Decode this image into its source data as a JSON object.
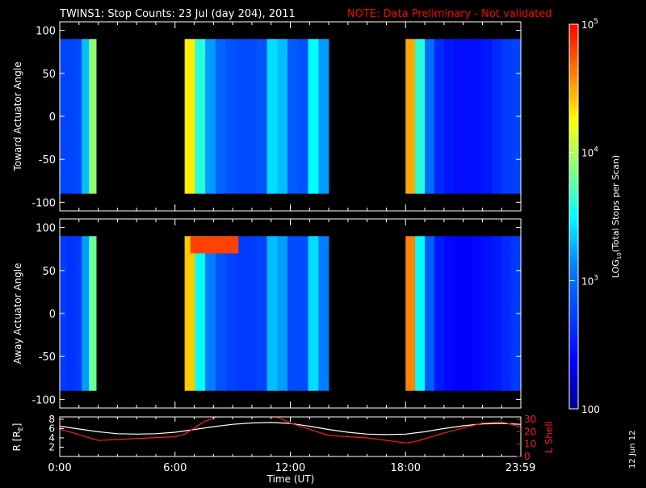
{
  "title": {
    "main": "TWINS1: Stop Counts: 23 Jul (day 204), 2011",
    "note": "NOTE: Data Preliminary - Not validated",
    "note_color": "#ff0000"
  },
  "side_date": "12 Jun 12",
  "colors": {
    "background": "#000000",
    "axes": "#ffffff",
    "orbit_L": "#ff1a1a",
    "orbit_R": "#ffffff"
  },
  "chart_data": [
    {
      "type": "heatmap",
      "panel": "top",
      "ylabel": "Toward Actuator Angle",
      "ylim": [
        -110,
        110
      ],
      "angle_range": [
        -90,
        90
      ],
      "yticks": [
        "100",
        "50",
        "0",
        "-50",
        "-100"
      ],
      "ytick_values": [
        100,
        50,
        0,
        -50,
        -100
      ],
      "xlim_hours": [
        0,
        24
      ],
      "colorscale": "log10",
      "data_gaps_hours": [
        [
          1.9,
          6.5
        ],
        [
          14.0,
          18.0
        ]
      ],
      "time_segments": [
        {
          "start": 0.0,
          "end": 1.9,
          "log_counts": [
            2.75,
            2.75,
            2.8,
            3.3,
            3.9
          ]
        },
        {
          "start": 6.5,
          "end": 14.0,
          "log_counts": [
            4.3,
            3.6,
            3.2,
            2.95,
            2.85,
            2.8,
            2.8,
            2.85,
            3.4,
            3.3,
            2.9,
            2.85,
            3.5,
            3.2
          ]
        },
        {
          "start": 18.0,
          "end": 24.0,
          "log_counts": [
            4.5,
            3.6,
            3.0,
            2.6,
            2.5,
            2.45,
            2.45,
            2.45,
            2.5,
            2.6,
            2.7,
            2.75
          ]
        }
      ]
    },
    {
      "type": "heatmap",
      "panel": "middle",
      "ylabel": "Away Actuator Angle",
      "ylim": [
        -110,
        110
      ],
      "angle_range": [
        -90,
        90
      ],
      "yticks": [
        "100",
        "50",
        "0",
        "-50",
        "-100"
      ],
      "ytick_values": [
        100,
        50,
        0,
        -50,
        -100
      ],
      "xlim_hours": [
        0,
        24
      ],
      "colorscale": "log10",
      "data_gaps_hours": [
        [
          1.9,
          6.5
        ],
        [
          14.0,
          18.0
        ]
      ],
      "time_segments": [
        {
          "start": 0.0,
          "end": 1.9,
          "log_counts": [
            2.7,
            2.65,
            2.7,
            3.2,
            3.8
          ]
        },
        {
          "start": 6.5,
          "end": 14.0,
          "log_counts": [
            4.4,
            3.5,
            3.1,
            2.85,
            2.75,
            2.7,
            2.7,
            2.75,
            3.3,
            3.2,
            2.8,
            2.8,
            3.4,
            3.1
          ]
        },
        {
          "start": 18.0,
          "end": 24.0,
          "log_counts": [
            4.6,
            3.5,
            2.9,
            2.5,
            2.4,
            2.35,
            2.35,
            2.4,
            2.45,
            2.5,
            2.6,
            2.7
          ]
        }
      ],
      "saturation_band": {
        "start": 6.8,
        "end": 9.3,
        "angle_min": 70,
        "angle_max": 90,
        "log_counts": 4.8
      }
    },
    {
      "type": "line",
      "panel": "orbit",
      "ylabel_left": "R [R",
      "ylabel_left_sub": "E",
      "ylabel_left_close": "]",
      "ylabel_right": "L Shell",
      "yticks_left": [
        "8",
        "6",
        "4",
        "2"
      ],
      "ytick_left_values": [
        8,
        6,
        4,
        2
      ],
      "ylim_left": [
        0,
        8.5
      ],
      "yticks_right": [
        "30",
        "20",
        "10",
        "0"
      ],
      "ytick_right_values": [
        30,
        20,
        10,
        0
      ],
      "ylim_right": [
        0,
        32
      ],
      "xticks": [
        "0:00",
        "6:00",
        "12:00",
        "18:00",
        "23:59"
      ],
      "xtick_values": [
        0,
        6,
        12,
        18,
        23.983
      ],
      "xlabel": "Time (UT)",
      "series": [
        {
          "axis": "left",
          "color": "#ffffff",
          "x": [
            0,
            1,
            2,
            3,
            4,
            5,
            6,
            7,
            8,
            9,
            10,
            11,
            12,
            13,
            14,
            15,
            16,
            17,
            18,
            19,
            20,
            21,
            22,
            23,
            24
          ],
          "y": [
            6.5,
            5.9,
            5.3,
            4.9,
            4.8,
            4.9,
            5.2,
            5.8,
            6.4,
            6.9,
            7.2,
            7.3,
            7.1,
            6.5,
            5.8,
            5.2,
            4.8,
            4.7,
            4.8,
            5.3,
            6.0,
            6.6,
            7.0,
            7.1,
            6.9
          ]
        },
        {
          "axis": "right",
          "color": "#ff1a1a",
          "x": [
            0,
            0.5,
            2,
            6,
            6.5,
            7.5,
            8.2,
            8.6,
            11.3,
            12,
            14,
            16,
            18,
            18.5,
            20,
            22,
            23,
            24
          ],
          "y": [
            22,
            20,
            13,
            16,
            18,
            28,
            32,
            32,
            32,
            27,
            17,
            15,
            11,
            12,
            19,
            27,
            28,
            24
          ]
        }
      ]
    },
    {
      "type": "colorbar",
      "scale": "log10",
      "range": [
        2,
        5
      ],
      "tick_base": "10",
      "ticks": [
        {
          "value": 5,
          "base": "10",
          "exp": "5"
        },
        {
          "value": 4,
          "base": "10",
          "exp": "4"
        },
        {
          "value": 3,
          "base": "10",
          "exp": "3"
        },
        {
          "value": 2,
          "label": "100"
        }
      ],
      "label_pre": "LOG",
      "label_sub": "10",
      "label_post": "(Total Stops per Scan)"
    }
  ]
}
